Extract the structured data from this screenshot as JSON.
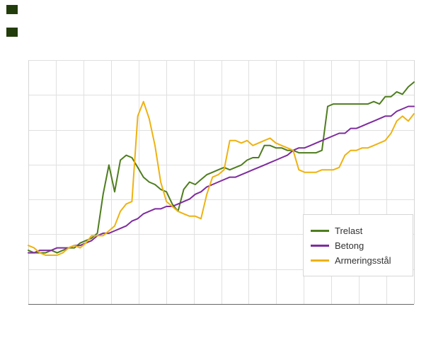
{
  "branding": {
    "logo_color": "#233c0b"
  },
  "chart_data": {
    "type": "line",
    "title": "",
    "xlabel": "",
    "ylabel": "",
    "axis_tick_labels_visible": false,
    "grid": {
      "vertical_intervals": 14,
      "horizontal_intervals": 7,
      "visible": true
    },
    "ylim": [
      75,
      175
    ],
    "x_count": 68,
    "legend_position": "bottom-right-inside",
    "series": [
      {
        "name": "Trelast",
        "color": "#4e7d1e",
        "values": [
          97,
          96,
          96,
          96,
          97,
          96,
          97,
          98,
          98,
          100,
          101,
          102,
          104,
          120,
          132,
          121,
          134,
          136,
          135,
          131,
          127,
          125,
          124,
          122,
          121,
          116,
          113,
          122,
          125,
          124,
          126,
          128,
          129,
          130,
          131,
          130,
          131,
          132,
          134,
          135,
          135,
          140,
          140,
          139,
          139,
          138,
          138,
          137,
          137,
          137,
          137,
          138,
          156,
          157,
          157,
          157,
          157,
          157,
          157,
          157,
          158,
          157,
          160,
          160,
          162,
          161,
          164,
          166
        ]
      },
      {
        "name": "Betong",
        "color": "#7e2c9e",
        "values": [
          96,
          96,
          97,
          97,
          97,
          98,
          98,
          98,
          99,
          99,
          100,
          101,
          103,
          104,
          104,
          105,
          106,
          107,
          109,
          110,
          112,
          113,
          114,
          114,
          115,
          115,
          116,
          117,
          118,
          120,
          121,
          123,
          124,
          125,
          126,
          127,
          127,
          128,
          129,
          130,
          131,
          132,
          133,
          134,
          135,
          136,
          138,
          139,
          139,
          140,
          141,
          142,
          143,
          144,
          145,
          145,
          147,
          147,
          148,
          149,
          150,
          151,
          152,
          152,
          154,
          155,
          156,
          156
        ]
      },
      {
        "name": "Armeringsstål",
        "color": "#eeb211",
        "values": [
          99,
          98,
          96,
          95,
          95,
          95,
          96,
          98,
          99,
          98,
          100,
          103,
          103,
          103,
          105,
          107,
          113,
          116,
          117,
          152,
          158,
          151,
          140,
          125,
          117,
          115,
          113,
          112,
          111,
          111,
          110,
          120,
          127,
          128,
          130,
          142,
          142,
          141,
          142,
          140,
          141,
          142,
          143,
          141,
          140,
          139,
          138,
          130,
          129,
          129,
          129,
          130,
          130,
          130,
          131,
          136,
          138,
          138,
          139,
          139,
          140,
          141,
          142,
          145,
          150,
          152,
          150,
          153
        ]
      }
    ]
  }
}
